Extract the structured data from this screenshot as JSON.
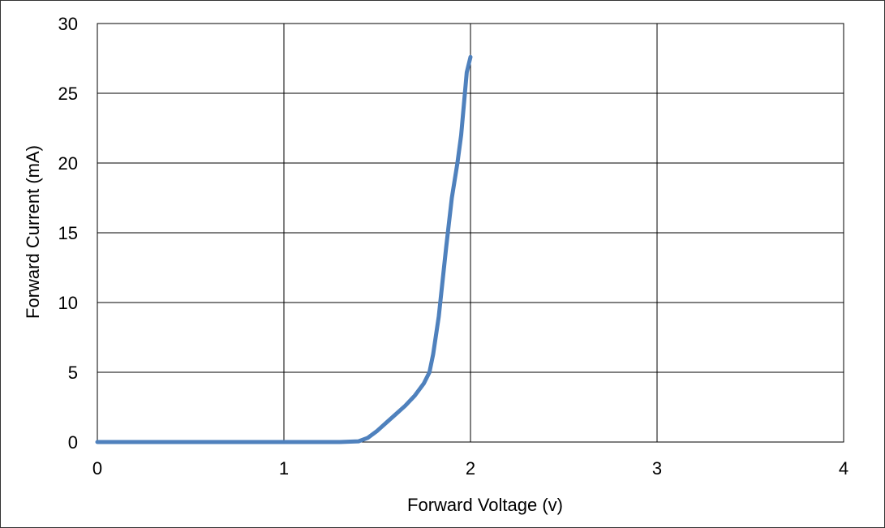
{
  "chart_data": {
    "type": "line",
    "title": "",
    "xlabel": "Forward Voltage (v)",
    "ylabel": "Forward Current (mA)",
    "xlim": [
      0,
      4
    ],
    "ylim": [
      0,
      30
    ],
    "x_ticks": [
      0,
      1,
      2,
      3,
      4
    ],
    "y_ticks": [
      0,
      5,
      10,
      15,
      20,
      25,
      30
    ],
    "grid": true,
    "legend": "none",
    "series": [
      {
        "color": "#4f81bd",
        "points": [
          [
            0,
            0
          ],
          [
            0.5,
            0
          ],
          [
            1.0,
            0
          ],
          [
            1.2,
            0
          ],
          [
            1.3,
            0
          ],
          [
            1.4,
            0.05
          ],
          [
            1.45,
            0.3
          ],
          [
            1.5,
            0.8
          ],
          [
            1.55,
            1.4
          ],
          [
            1.6,
            2.0
          ],
          [
            1.65,
            2.6
          ],
          [
            1.7,
            3.3
          ],
          [
            1.75,
            4.2
          ],
          [
            1.78,
            5.0
          ],
          [
            1.8,
            6.3
          ],
          [
            1.83,
            9.0
          ],
          [
            1.85,
            11.5
          ],
          [
            1.87,
            14.0
          ],
          [
            1.9,
            17.5
          ],
          [
            1.93,
            20.0
          ],
          [
            1.95,
            22.0
          ],
          [
            1.97,
            25.0
          ],
          [
            1.98,
            26.5
          ],
          [
            2.0,
            27.6
          ]
        ]
      }
    ]
  }
}
